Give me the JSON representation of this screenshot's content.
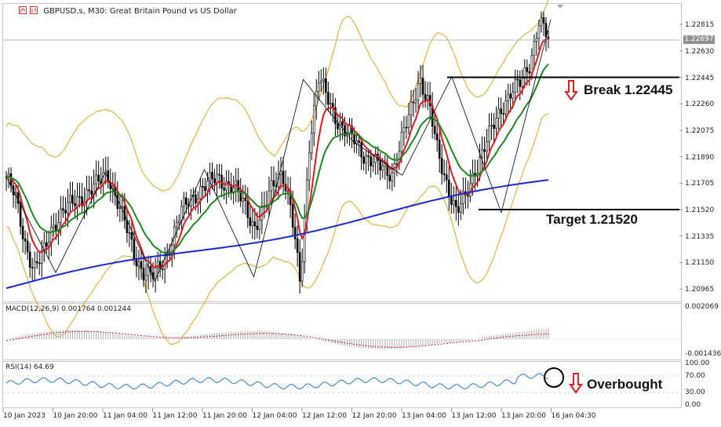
{
  "chart_header": {
    "symbol": "GBPUSD.s, M30:",
    "description": "Great Britain Pound vs US Dollar"
  },
  "current_price": "1.22697",
  "price_axis": [
    "1.22815",
    "1.22630",
    "1.22445",
    "1.22260",
    "1.22075",
    "1.21890",
    "1.21705",
    "1.21520",
    "1.21335",
    "1.21150",
    "1.20965"
  ],
  "macd": {
    "label": "MACD(12,26,9) 0.001764 0.001244",
    "axis": [
      "0.002069",
      "-0.001436"
    ]
  },
  "rsi": {
    "label": "RSI(14) 64.69",
    "axis": [
      "100.00",
      "70.00",
      "30.00",
      "0.00"
    ]
  },
  "time_axis": [
    "10 Jan 2023",
    "10 Jan 20:00",
    "11 Jan 04:00",
    "11 Jan 12:00",
    "11 Jan 20:00",
    "12 Jan 04:00",
    "12 Jan 12:00",
    "12 Jan 20:00",
    "13 Jan 04:00",
    "13 Jan 12:00",
    "13 Jan 20:00",
    "16 Jan 04:30"
  ],
  "annotations": {
    "break": "Break 1.22445",
    "target": "Target 1.21520",
    "overbought": "Overbought"
  },
  "colors": {
    "bull_candle": "#000000",
    "bear_candle": "#000000",
    "ema_fast": "#e31b1b",
    "ema_mid": "#1c8a1c",
    "ema_slow": "#1b2bd1",
    "bollinger": "#e8a317",
    "macd_hist": "#b0b0b0",
    "macd_signal": "#d42020",
    "rsi_line": "#1e7fd8",
    "arrow": "#e02020"
  },
  "chart_data": {
    "type": "candlestick",
    "symbol": "GBPUSD.s",
    "timeframe": "M30",
    "ylim": [
      1.209,
      1.2292
    ],
    "levels": [
      {
        "name": "Break",
        "value": 1.22445
      },
      {
        "name": "Target",
        "value": 1.2152
      }
    ],
    "zigzag": [
      1.2175,
      1.2108,
      1.2178,
      1.2102,
      1.218,
      1.2105,
      1.2243,
      1.22,
      1.2176,
      1.2245,
      1.215,
      1.2285
    ],
    "price_path": [
      1.2175,
      1.216,
      1.213,
      1.211,
      1.212,
      1.214,
      1.215,
      1.2155,
      1.216,
      1.2165,
      1.217,
      1.2178,
      1.216,
      1.214,
      1.212,
      1.2108,
      1.2105,
      1.2115,
      1.213,
      1.215,
      1.216,
      1.2165,
      1.217,
      1.2175,
      1.217,
      1.2165,
      1.2155,
      1.214,
      1.215,
      1.217,
      1.218,
      1.215,
      1.21,
      1.22,
      1.2243,
      1.223,
      1.2215,
      1.2205,
      1.22,
      1.219,
      1.2185,
      1.218,
      1.2178,
      1.22,
      1.222,
      1.2245,
      1.2225,
      1.219,
      1.217,
      1.215,
      1.216,
      1.218,
      1.2195,
      1.221,
      1.2225,
      1.2235,
      1.224,
      1.2255,
      1.2285,
      1.227
    ],
    "rsi_last": 64.69,
    "macd_last": [
      0.001764,
      0.001244
    ]
  }
}
